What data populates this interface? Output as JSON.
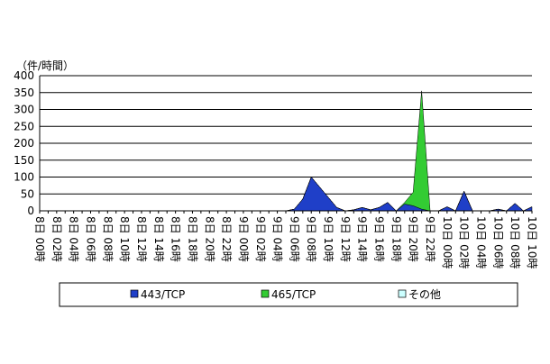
{
  "chart_data": {
    "type": "stacked-area",
    "y_label": "（件/時間）",
    "categories": [
      "8日 00時",
      null,
      "8日 02時",
      null,
      "8日 04時",
      null,
      "8日 06時",
      null,
      "8日 08時",
      null,
      "8日 10時",
      null,
      "8日 12時",
      null,
      "8日 14時",
      null,
      "8日 16時",
      null,
      "8日 18時",
      null,
      "8日 20時",
      null,
      "8日 22時",
      null,
      "9日 00時",
      null,
      "9日 02時",
      null,
      "9日 04時",
      null,
      "9日 06時",
      null,
      "9日 08時",
      null,
      "9日 10時",
      null,
      "9日 12時",
      null,
      "9日 14時",
      null,
      "9日 16時",
      null,
      "9日 18時",
      null,
      "9日 20時",
      null,
      "9日 22時",
      null,
      "10日 00時",
      null,
      "10日 02時",
      null,
      "10日 04時",
      null,
      "10日 06時",
      null,
      "10日 08時",
      null,
      "10日 10時"
    ],
    "series": [
      {
        "name": "443/TCP",
        "color": "#1f3fc8",
        "values": [
          0,
          0,
          0,
          0,
          0,
          0,
          0,
          0,
          0,
          0,
          0,
          0,
          0,
          0,
          0,
          0,
          0,
          0,
          0,
          0,
          0,
          0,
          0,
          0,
          0,
          0,
          0,
          0,
          0,
          0,
          5,
          35,
          100,
          70,
          40,
          10,
          0,
          3,
          10,
          3,
          10,
          25,
          0,
          20,
          15,
          5,
          0,
          0,
          12,
          0,
          58,
          0,
          0,
          0,
          5,
          0,
          22,
          0,
          12
        ]
      },
      {
        "name": "465/TCP",
        "color": "#33cc33",
        "values": [
          0,
          0,
          0,
          0,
          0,
          0,
          0,
          0,
          0,
          0,
          0,
          0,
          0,
          0,
          0,
          0,
          0,
          0,
          0,
          0,
          0,
          0,
          0,
          0,
          0,
          0,
          0,
          0,
          0,
          0,
          0,
          0,
          0,
          0,
          0,
          0,
          0,
          0,
          0,
          0,
          0,
          0,
          0,
          5,
          40,
          350,
          0,
          0,
          0,
          0,
          0,
          0,
          0,
          0,
          0,
          0,
          0,
          0,
          0
        ]
      },
      {
        "name": "その他",
        "color": "#ccffff",
        "values": [
          0,
          0,
          0,
          0,
          0,
          0,
          0,
          0,
          0,
          0,
          0,
          0,
          0,
          0,
          0,
          0,
          0,
          0,
          0,
          0,
          0,
          0,
          0,
          0,
          0,
          0,
          0,
          0,
          0,
          0,
          0,
          0,
          0,
          0,
          0,
          0,
          0,
          0,
          0,
          0,
          0,
          0,
          0,
          0,
          0,
          0,
          0,
          0,
          0,
          0,
          0,
          0,
          0,
          0,
          0,
          0,
          0,
          0,
          0
        ]
      }
    ],
    "ylim": [
      0,
      400
    ],
    "yticks": [
      0,
      50,
      100,
      150,
      200,
      250,
      300,
      350,
      400
    ],
    "grid": true
  }
}
